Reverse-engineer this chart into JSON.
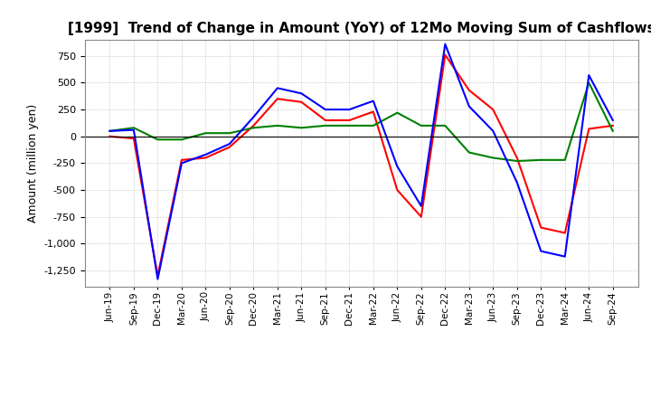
{
  "title": "[1999]  Trend of Change in Amount (YoY) of 12Mo Moving Sum of Cashflows",
  "ylabel": "Amount (million yen)",
  "x_labels": [
    "Jun-19",
    "Sep-19",
    "Dec-19",
    "Mar-20",
    "Jun-20",
    "Sep-20",
    "Dec-20",
    "Mar-21",
    "Jun-21",
    "Sep-21",
    "Dec-21",
    "Mar-22",
    "Jun-22",
    "Sep-22",
    "Dec-22",
    "Mar-23",
    "Jun-23",
    "Sep-23",
    "Dec-23",
    "Mar-24",
    "Jun-24",
    "Sep-24"
  ],
  "operating": [
    0,
    -20,
    -1300,
    -220,
    -200,
    -100,
    100,
    350,
    320,
    150,
    150,
    230,
    -500,
    -750,
    760,
    430,
    250,
    -200,
    -850,
    -900,
    70,
    100
  ],
  "investing": [
    50,
    80,
    -30,
    -30,
    30,
    30,
    80,
    100,
    80,
    100,
    100,
    100,
    220,
    100,
    100,
    -150,
    -200,
    -230,
    -220,
    -220,
    500,
    50
  ],
  "free": [
    50,
    60,
    -1330,
    -250,
    -170,
    -70,
    180,
    450,
    400,
    250,
    250,
    330,
    -280,
    -650,
    860,
    280,
    50,
    -430,
    -1070,
    -1120,
    570,
    150
  ],
  "ylim": [
    -1400,
    900
  ],
  "yticks": [
    -1250,
    -1000,
    -750,
    -500,
    -250,
    0,
    250,
    500,
    750
  ],
  "operating_color": "#ff0000",
  "investing_color": "#008000",
  "free_color": "#0000ff",
  "grid_color": "#aaaaaa",
  "background_color": "#ffffff"
}
